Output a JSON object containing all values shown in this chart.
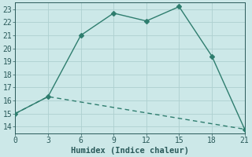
{
  "xlabel": "Humidex (Indice chaleur)",
  "line1_x": [
    0,
    3,
    6,
    9,
    12,
    15,
    18,
    21
  ],
  "line1_y": [
    15,
    16.3,
    21,
    22.7,
    22.1,
    23.2,
    19.4,
    13.8
  ],
  "line2_x": [
    0,
    3,
    21
  ],
  "line2_y": [
    15,
    16.3,
    13.8
  ],
  "line_color": "#2e7d6e",
  "marker": "D",
  "marker_size": 3,
  "xlim": [
    0,
    21
  ],
  "ylim": [
    13.5,
    23.5
  ],
  "xticks": [
    0,
    3,
    6,
    9,
    12,
    15,
    18,
    21
  ],
  "yticks": [
    14,
    15,
    16,
    17,
    18,
    19,
    20,
    21,
    22,
    23
  ],
  "bg_color": "#cce8e8",
  "grid_color": "#aed0d0",
  "line_width": 1.0,
  "font_color": "#2a5a5a",
  "font_size": 7,
  "xlabel_size": 7.5
}
